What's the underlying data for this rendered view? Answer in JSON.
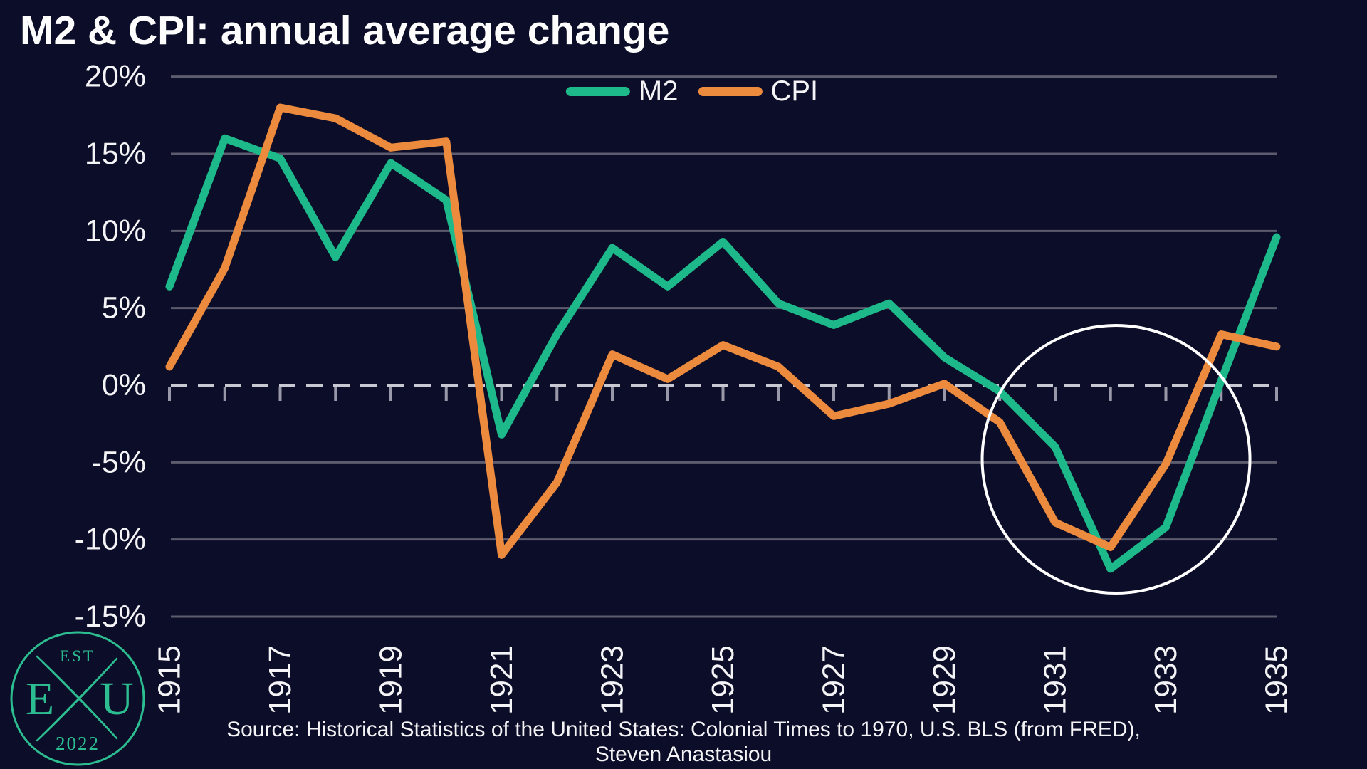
{
  "title": "M2 & CPI: annual average change",
  "legend": {
    "m2_label": "M2",
    "cpi_label": "CPI"
  },
  "source": {
    "line1": "Source: Historical Statistics of the United States: Colonial Times to 1970, U.S. BLS (from FRED),",
    "line2": "Steven Anastasiou"
  },
  "logo": {
    "est": "EST",
    "year": "2022",
    "letter_left": "E",
    "letter_right": "U"
  },
  "colors": {
    "background": "#0c0d28",
    "m2": "#1db98a",
    "cpi": "#ec8a3d",
    "gridline": "#5c5c6e",
    "zero_dash": "#c8c8d2",
    "tick": "#9898a8",
    "text": "#f4f4f6",
    "annotation_circle": "#ffffff",
    "logo_teal": "#2cbe91"
  },
  "chart_data": {
    "type": "line",
    "x": [
      1915,
      1916,
      1917,
      1918,
      1919,
      1920,
      1921,
      1922,
      1923,
      1924,
      1925,
      1926,
      1927,
      1928,
      1929,
      1930,
      1931,
      1932,
      1933,
      1934,
      1935
    ],
    "series": [
      {
        "name": "M2",
        "color": "#1db98a",
        "values": [
          6.4,
          16.0,
          14.7,
          8.3,
          14.4,
          12.0,
          -3.2,
          3.3,
          8.9,
          6.4,
          9.3,
          5.3,
          3.9,
          5.3,
          1.8,
          -0.4,
          -4.0,
          -11.9,
          -9.2,
          0.3,
          9.6
        ]
      },
      {
        "name": "CPI",
        "color": "#ec8a3d",
        "values": [
          1.2,
          7.6,
          18.0,
          17.3,
          15.4,
          15.8,
          -11.0,
          -6.3,
          2.0,
          0.4,
          2.6,
          1.2,
          -2.0,
          -1.2,
          0.1,
          -2.4,
          -8.9,
          -10.5,
          -5.1,
          3.3,
          2.5
        ]
      }
    ],
    "title": "M2 & CPI: annual average change",
    "xlabel": "",
    "ylabel": "",
    "ylim": [
      -15,
      20
    ],
    "ytick_values": [
      20,
      15,
      10,
      5,
      0,
      -5,
      -10,
      -15
    ],
    "ytick_labels": [
      "20%",
      "15%",
      "10%",
      "5%",
      "0%",
      "-5%",
      "-10%",
      "-15%"
    ],
    "xtick_labeled_years": [
      1915,
      1917,
      1919,
      1921,
      1923,
      1925,
      1927,
      1929,
      1931,
      1933,
      1935
    ],
    "grid": "horizontal",
    "zero_line": "dashed",
    "legend_position": "top-center",
    "annotation_circle": {
      "year": 1932.1,
      "value": -4.8,
      "radius_px": 188
    }
  }
}
